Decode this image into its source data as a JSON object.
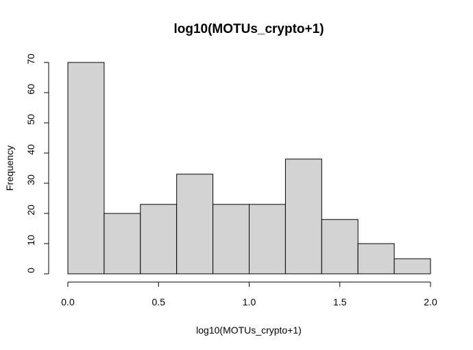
{
  "chart_data": {
    "type": "bar",
    "title": "log10(MOTUs_crypto+1)",
    "xlabel": "log10(MOTUs_crypto+1)",
    "ylabel": "Frequency",
    "bins": [
      {
        "from": 0.0,
        "to": 0.2,
        "count": 70
      },
      {
        "from": 0.2,
        "to": 0.4,
        "count": 20
      },
      {
        "from": 0.4,
        "to": 0.6,
        "count": 23
      },
      {
        "from": 0.6,
        "to": 0.8,
        "count": 33
      },
      {
        "from": 0.8,
        "to": 1.0,
        "count": 23
      },
      {
        "from": 1.0,
        "to": 1.2,
        "count": 23
      },
      {
        "from": 1.2,
        "to": 1.4,
        "count": 38
      },
      {
        "from": 1.4,
        "to": 1.6,
        "count": 18
      },
      {
        "from": 1.6,
        "to": 1.8,
        "count": 10
      },
      {
        "from": 1.8,
        "to": 2.0,
        "count": 5
      }
    ],
    "xlim": [
      0,
      2
    ],
    "ylim": [
      0,
      70
    ],
    "x_ticks": [
      {
        "value": 0.0,
        "label": "0.0"
      },
      {
        "value": 0.5,
        "label": "0.5"
      },
      {
        "value": 1.0,
        "label": "1.0"
      },
      {
        "value": 1.5,
        "label": "1.5"
      },
      {
        "value": 2.0,
        "label": "2.0"
      }
    ],
    "y_ticks": [
      {
        "value": 0,
        "label": "0"
      },
      {
        "value": 10,
        "label": "10"
      },
      {
        "value": 20,
        "label": "20"
      },
      {
        "value": 30,
        "label": "30"
      },
      {
        "value": 40,
        "label": "40"
      },
      {
        "value": 50,
        "label": "50"
      },
      {
        "value": 60,
        "label": "60"
      },
      {
        "value": 70,
        "label": "70"
      }
    ],
    "grid": false,
    "bar_color": "#d3d3d3",
    "edge_color": "#000000"
  }
}
